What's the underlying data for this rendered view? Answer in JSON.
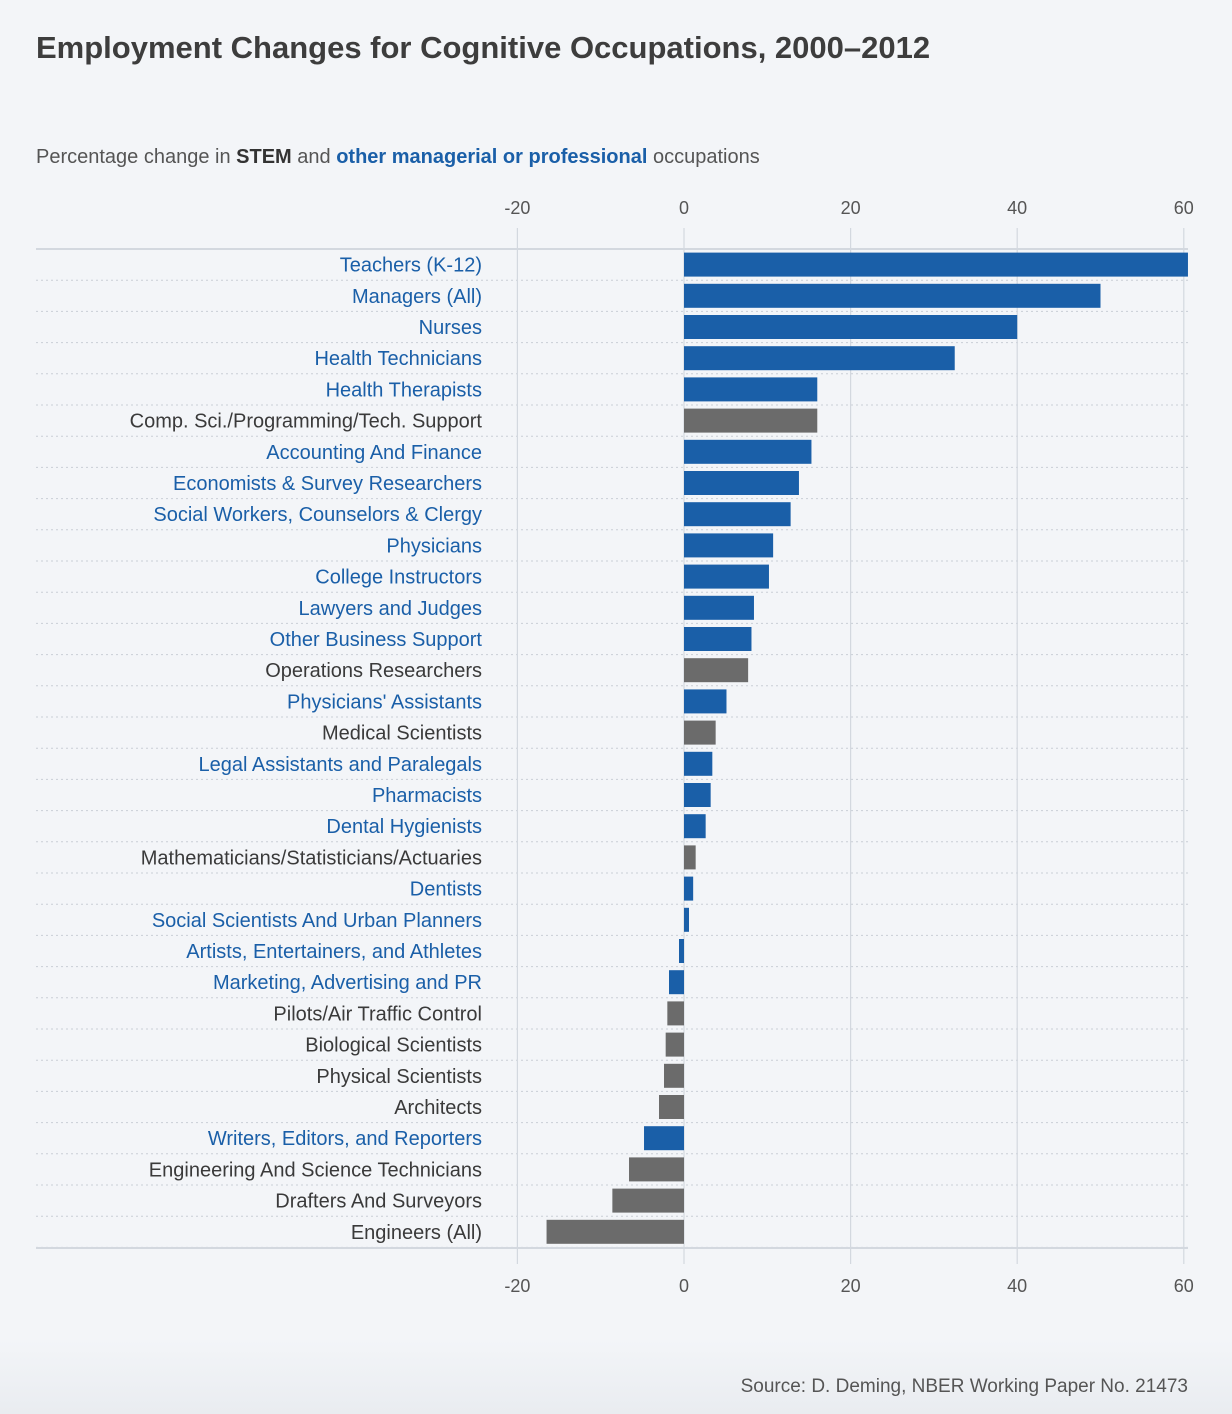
{
  "title": "Employment Changes for Cognitive Occupations, 2000–2012",
  "subtitle": {
    "prefix": "Percentage change in ",
    "stem": "STEM",
    "middle": " and ",
    "professional": "other managerial or professional",
    "suffix": " occupations"
  },
  "source": "Source: D. Deming, NBER Working Paper No. 21473",
  "colors": {
    "stem": "#6b6b6b",
    "professional": "#1a5fa8",
    "label_stem": "#3a3a3a",
    "label_professional": "#1a5fa8"
  },
  "chart_data": {
    "type": "bar",
    "orientation": "horizontal",
    "xlim": [
      -20,
      60
    ],
    "ticks": [
      -20,
      0,
      20,
      40,
      60
    ],
    "grid": true,
    "categories": [
      "Teachers (K-12)",
      "Managers (All)",
      "Nurses",
      "Health Technicians",
      "Health Therapists",
      "Comp. Sci./Programming/Tech. Support",
      "Accounting And Finance",
      "Economists & Survey Researchers",
      "Social Workers, Counselors & Clergy",
      "Physicians",
      "College Instructors",
      "Lawyers and Judges",
      "Other Business Support",
      "Operations Researchers",
      "Physicians' Assistants",
      "Medical Scientists",
      "Legal Assistants and Paralegals",
      "Pharmacists",
      "Dental Hygienists",
      "Mathematicians/Statisticians/Actuaries",
      "Dentists",
      "Social Scientists And Urban Planners",
      "Artists, Entertainers, and Athletes",
      "Marketing, Advertising and PR",
      "Pilots/Air Traffic Control",
      "Biological Scientists",
      "Physical Scientists",
      "Architects",
      "Writers, Editors, and Reporters",
      "Engineering And Science Technicians",
      "Drafters And Surveyors",
      "Engineers (All)"
    ],
    "values": [
      60.5,
      50,
      40,
      32.5,
      16,
      16,
      15.3,
      13.8,
      12.8,
      10.7,
      10.2,
      8.4,
      8.1,
      7.7,
      5.1,
      3.8,
      3.4,
      3.2,
      2.6,
      1.4,
      1.1,
      0.6,
      -0.6,
      -1.8,
      -2,
      -2.2,
      -2.4,
      -3,
      -4.8,
      -6.6,
      -8.6,
      -16.5
    ],
    "groups": [
      "professional",
      "professional",
      "professional",
      "professional",
      "professional",
      "stem",
      "professional",
      "professional",
      "professional",
      "professional",
      "professional",
      "professional",
      "professional",
      "stem",
      "professional",
      "stem",
      "professional",
      "professional",
      "professional",
      "stem",
      "professional",
      "professional",
      "professional",
      "professional",
      "stem",
      "stem",
      "stem",
      "stem",
      "professional",
      "stem",
      "stem",
      "stem"
    ]
  }
}
